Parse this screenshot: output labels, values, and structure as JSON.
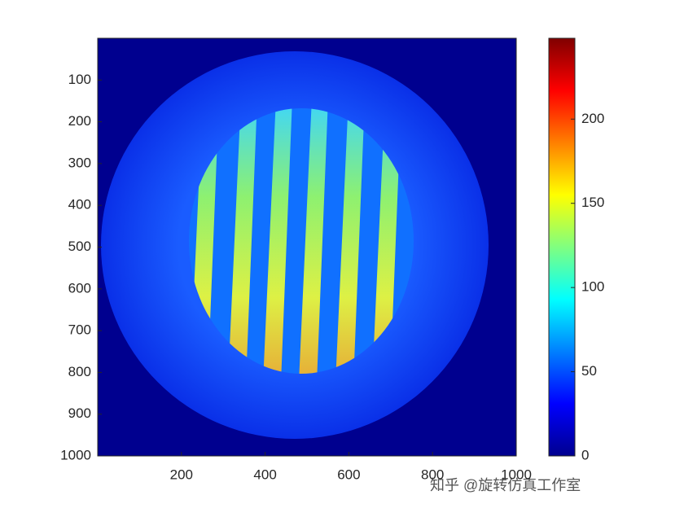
{
  "chart_data": {
    "type": "image",
    "xlim": [
      0,
      1000
    ],
    "ylim": [
      0,
      1000
    ],
    "y_reversed": true,
    "xticks": [
      200,
      400,
      600,
      800,
      1000
    ],
    "yticks": [
      100,
      200,
      300,
      400,
      500,
      600,
      700,
      800,
      900,
      1000
    ],
    "colorbar": {
      "lim": [
        0,
        248
      ],
      "ticks": [
        0,
        50,
        100,
        150,
        200
      ],
      "colormap": "jet"
    },
    "watermark": "知乎 @旋转仿真工作室"
  }
}
